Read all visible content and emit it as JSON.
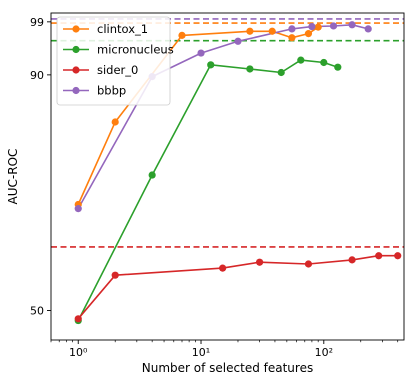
{
  "chart_data": {
    "type": "line",
    "xlabel": "Number of selected features",
    "ylabel": "AUC-ROC",
    "x_scale": "log",
    "xlim": [
      0.6,
      450
    ],
    "ylim": [
      45,
      100.5
    ],
    "y_ticks": [
      50,
      90,
      99
    ],
    "x_ticks": [
      {
        "value": 1,
        "label": "10⁰"
      },
      {
        "value": 10,
        "label": "10¹"
      },
      {
        "value": 100,
        "label": "10²"
      }
    ],
    "grid": false,
    "legend_position": "top-left",
    "series": [
      {
        "name": "clintox_1",
        "color": "#ff7f0e",
        "x": [
          1,
          2,
          7,
          25,
          38,
          55,
          75,
          90
        ],
        "y": [
          68,
          82,
          96.7,
          97.4,
          97.4,
          96.3,
          97,
          98.1
        ],
        "baseline": 98.8
      },
      {
        "name": "micronucleus",
        "color": "#2ca02c",
        "x": [
          1,
          4,
          12,
          25,
          45,
          65,
          100,
          130
        ],
        "y": [
          48.3,
          73,
          91.7,
          91,
          90.4,
          92.5,
          92.1,
          91.3
        ],
        "baseline": 95.8
      },
      {
        "name": "sider_0",
        "color": "#d62728",
        "x": [
          1,
          2,
          15,
          30,
          75,
          170,
          280,
          400
        ],
        "y": [
          48.6,
          56,
          57.2,
          58.2,
          57.9,
          58.6,
          59.3,
          59.3
        ],
        "baseline": 60.8
      },
      {
        "name": "bbbp",
        "color": "#9467bd",
        "x": [
          1,
          4,
          10,
          20,
          55,
          80,
          120,
          170,
          230
        ],
        "y": [
          67.3,
          89.7,
          93.7,
          95.7,
          97.8,
          98.2,
          98.3,
          98.5,
          97.8
        ],
        "baseline": 99.5
      }
    ]
  }
}
